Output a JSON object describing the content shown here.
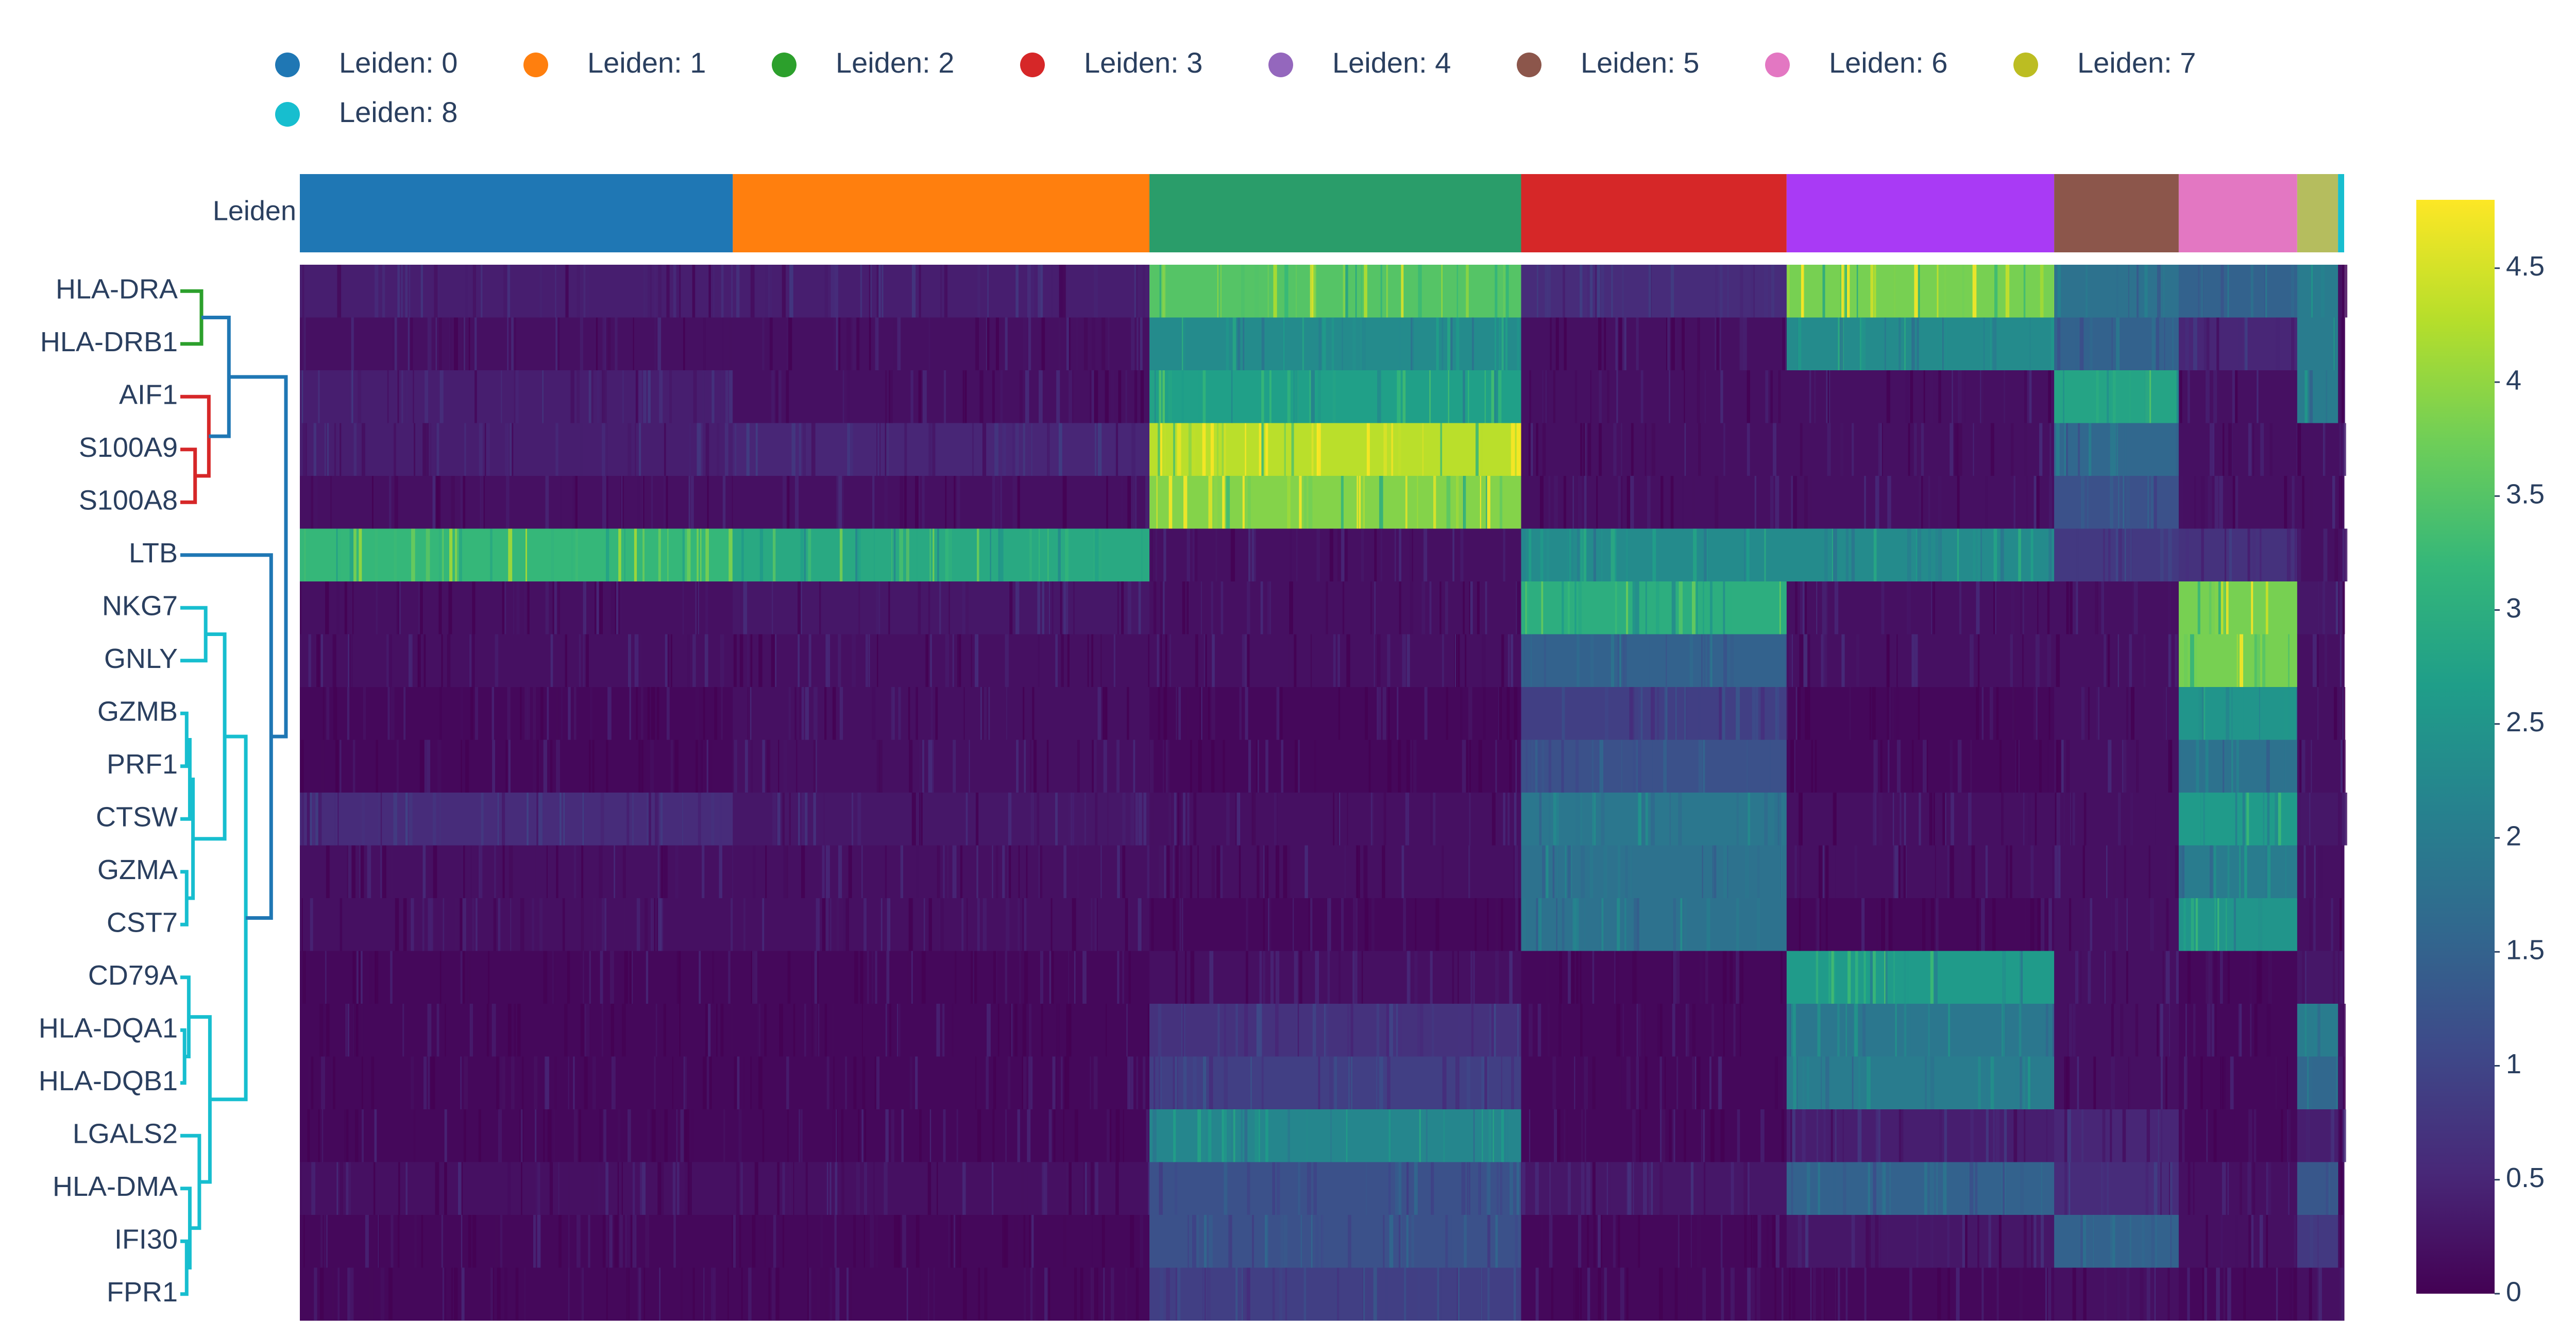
{
  "chart_data": {
    "type": "heatmap",
    "legend": {
      "position": "top-left",
      "entries": [
        {
          "label": "Leiden: 0",
          "color": "#1f77b4"
        },
        {
          "label": "Leiden: 1",
          "color": "#ff7f0e"
        },
        {
          "label": "Leiden: 2",
          "color": "#2ca02c"
        },
        {
          "label": "Leiden: 3",
          "color": "#d62728"
        },
        {
          "label": "Leiden: 4",
          "color": "#9467bd"
        },
        {
          "label": "Leiden: 5",
          "color": "#8c564b"
        },
        {
          "label": "Leiden: 6",
          "color": "#e377c2"
        },
        {
          "label": "Leiden: 7",
          "color": "#bcbd22"
        },
        {
          "label": "Leiden: 8",
          "color": "#17becf"
        }
      ]
    },
    "annotation_label": "Leiden",
    "clusters": [
      {
        "name": "0",
        "fraction": 0.212,
        "color": "#1f77b4"
      },
      {
        "name": "1",
        "fraction": 0.204,
        "color": "#ff7f0e"
      },
      {
        "name": "2",
        "fraction": 0.182,
        "color": "#2a9d6a"
      },
      {
        "name": "3",
        "fraction": 0.13,
        "color": "#d62728"
      },
      {
        "name": "4",
        "fraction": 0.131,
        "color": "#a93af5"
      },
      {
        "name": "5",
        "fraction": 0.061,
        "color": "#8c564b"
      },
      {
        "name": "6",
        "fraction": 0.058,
        "color": "#e377c2"
      },
      {
        "name": "7",
        "fraction": 0.02,
        "color": "#b5bd5e"
      },
      {
        "name": "8",
        "fraction": 0.003,
        "color": "#17becf"
      }
    ],
    "genes": [
      "HLA-DRA",
      "HLA-DRB1",
      "AIF1",
      "S100A9",
      "S100A8",
      "LTB",
      "NKG7",
      "GNLY",
      "GZMB",
      "PRF1",
      "CTSW",
      "GZMA",
      "CST7",
      "CD79A",
      "HLA-DQA1",
      "HLA-DQB1",
      "LGALS2",
      "HLA-DMA",
      "IFI30",
      "FPR1"
    ],
    "mean_expression": [
      [
        0.4,
        0.4,
        3.5,
        0.6,
        3.8,
        1.8,
        1.5,
        2.0,
        0.2
      ],
      [
        0.2,
        0.2,
        2.3,
        0.2,
        2.3,
        1.5,
        0.5,
        2.0,
        0.2
      ],
      [
        0.4,
        0.2,
        2.7,
        0.2,
        0.2,
        2.8,
        0.2,
        2.0,
        0.2
      ],
      [
        0.4,
        0.5,
        4.3,
        0.2,
        0.2,
        1.6,
        0.2,
        0.2,
        0.2
      ],
      [
        0.2,
        0.2,
        3.9,
        0.2,
        0.2,
        1.2,
        0.2,
        0.2,
        0.2
      ],
      [
        3.2,
        2.9,
        0.2,
        2.3,
        2.3,
        0.8,
        0.7,
        0.2,
        0.2
      ],
      [
        0.2,
        0.3,
        0.2,
        3.0,
        0.2,
        0.2,
        3.8,
        0.3,
        0.2
      ],
      [
        0.2,
        0.2,
        0.2,
        1.5,
        0.2,
        0.2,
        3.8,
        0.2,
        0.2
      ],
      [
        0.1,
        0.2,
        0.1,
        0.9,
        0.1,
        0.2,
        2.5,
        0.2,
        0.2
      ],
      [
        0.1,
        0.2,
        0.1,
        1.2,
        0.1,
        0.2,
        1.8,
        0.2,
        0.2
      ],
      [
        0.6,
        0.3,
        0.2,
        1.9,
        0.2,
        0.2,
        2.6,
        0.3,
        0.2
      ],
      [
        0.2,
        0.2,
        0.2,
        1.8,
        0.2,
        0.2,
        2.0,
        0.2,
        0.2
      ],
      [
        0.2,
        0.2,
        0.1,
        1.8,
        0.1,
        0.2,
        2.5,
        0.2,
        0.2
      ],
      [
        0.1,
        0.1,
        0.2,
        0.1,
        2.6,
        0.2,
        0.1,
        0.3,
        0.2
      ],
      [
        0.1,
        0.1,
        0.7,
        0.1,
        1.9,
        0.2,
        0.1,
        2.0,
        0.2
      ],
      [
        0.1,
        0.1,
        0.9,
        0.1,
        2.0,
        0.2,
        0.1,
        1.6,
        0.2
      ],
      [
        0.1,
        0.1,
        2.2,
        0.1,
        0.4,
        0.5,
        0.1,
        0.4,
        0.2
      ],
      [
        0.2,
        0.2,
        1.2,
        0.3,
        1.5,
        0.6,
        0.2,
        1.3,
        0.2
      ],
      [
        0.1,
        0.1,
        1.2,
        0.1,
        0.3,
        1.5,
        0.2,
        0.8,
        0.2
      ],
      [
        0.1,
        0.1,
        0.9,
        0.1,
        0.1,
        0.2,
        0.1,
        0.2,
        0.2
      ]
    ],
    "colorscale": "viridis",
    "colorbar": {
      "range": [
        0,
        4.8
      ],
      "ticks": [
        0,
        0.5,
        1,
        1.5,
        2,
        2.5,
        3,
        3.5,
        4,
        4.5
      ],
      "tick_labels": [
        "0",
        "0.5",
        "1",
        "1.5",
        "2",
        "2.5",
        "3",
        "3.5",
        "4",
        "4.5"
      ]
    },
    "dendrogram": {
      "merges": [
        {
          "a": "HLA-DRA",
          "b": "HLA-DRB1",
          "color": "#2ca02c",
          "height": 0.2
        },
        {
          "a": "S100A9",
          "b": "S100A8",
          "color": "#d62728",
          "height": 0.14
        },
        {
          "a": "AIF1",
          "b": "S100A9+S100A8",
          "color": "#d62728",
          "height": 0.27
        },
        {
          "a": "HLA-DRA+HLA-DRB1",
          "b": "AIF1+S100A9+S100A8",
          "color": "#1f77b4",
          "height": 0.46
        },
        {
          "a": "NKG7",
          "b": "GNLY",
          "color": "#17becf",
          "height": 0.24
        },
        {
          "a": "GZMB",
          "b": "PRF1",
          "color": "#17becf",
          "height": 0.06
        },
        {
          "a": "GZMB+PRF1",
          "b": "CTSW",
          "color": "#17becf",
          "height": 0.09
        },
        {
          "a": "GZMA",
          "b": "CST7",
          "color": "#17becf",
          "height": 0.06
        },
        {
          "a": "GZMB+PRF1+CTSW",
          "b": "GZMA+CST7",
          "color": "#17becf",
          "height": 0.12
        },
        {
          "a": "NKG7+GNLY",
          "b": "GZMB..CST7",
          "color": "#17becf",
          "height": 0.42
        },
        {
          "a": "HLA-DQA1",
          "b": "HLA-DQB1",
          "color": "#17becf",
          "height": 0.04
        },
        {
          "a": "CD79A",
          "b": "HLA-DQA1+HLA-DQB1",
          "color": "#17becf",
          "height": 0.08
        },
        {
          "a": "IFI30",
          "b": "FPR1",
          "color": "#17becf",
          "height": 0.06
        },
        {
          "a": "HLA-DMA",
          "b": "IFI30+FPR1",
          "color": "#17becf",
          "height": 0.09
        },
        {
          "a": "LGALS2",
          "b": "HLA-DMA+IFI30+FPR1",
          "color": "#17becf",
          "height": 0.18
        },
        {
          "a": "CD79A+HLA-DQA1+HLA-DQB1",
          "b": "LGALS2..FPR1",
          "color": "#17becf",
          "height": 0.28
        },
        {
          "a": "NKG7..CST7",
          "b": "CD79A..FPR1",
          "color": "#17becf",
          "height": 0.62
        },
        {
          "a": "LTB",
          "b": "NKG7..FPR1",
          "color": "#1f77b4",
          "height": 0.86
        },
        {
          "a": "HLA-DRA..S100A8",
          "b": "LTB..FPR1",
          "color": "#1f77b4",
          "height": 1.0
        }
      ]
    }
  }
}
